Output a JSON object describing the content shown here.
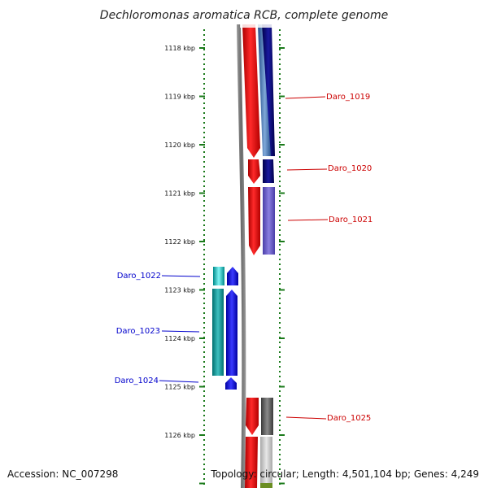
{
  "title": "Dechloromonas aromatica RCB, complete genome",
  "footer": {
    "accession": "Accession: NC_007298",
    "summary": "Topology: circular; Length: 4,501,104 bp; Genes: 4,249"
  },
  "ruler": {
    "unit": "kbp",
    "labels": [
      "1118 kbp",
      "1119 kbp",
      "1120 kbp",
      "1121 kbp",
      "1122 kbp",
      "1123 kbp",
      "1124 kbp",
      "1125 kbp",
      "1126 kbp"
    ]
  },
  "genes": {
    "forward": [
      "Daro_1019",
      "Daro_1020",
      "Daro_1021",
      "Daro_1025"
    ],
    "reverse": [
      "Daro_1022",
      "Daro_1023",
      "Daro_1024"
    ]
  },
  "colors": {
    "forward_label": "#cc0000",
    "reverse_label": "#0000cc",
    "tick": "#1a7a1a",
    "backbone": "#808080",
    "gene_red": "#ff0000",
    "gene_blue": "#0000ff",
    "gene_cyan": "#00e0e0",
    "gene_navy": "#00007a",
    "gene_lavender": "#6a5acd",
    "gene_gray": "#707070",
    "gene_olive": "#6b8e23"
  }
}
